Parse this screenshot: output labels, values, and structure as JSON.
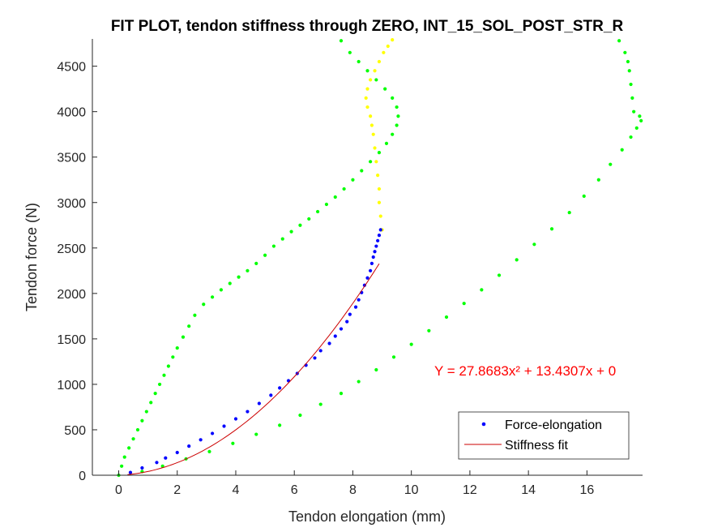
{
  "chart_data": {
    "type": "scatter",
    "title": "FIT PLOT, tendon stiffness through ZERO, INT_15_SOL_POST_STR_R",
    "xlabel": "Tendon elongation (mm)",
    "ylabel": "Tendon force (N)",
    "xlim": [
      -0.9,
      17.9
    ],
    "ylim": [
      0,
      4800
    ],
    "xticks": [
      "0",
      "2",
      "4",
      "6",
      "8",
      "10",
      "12",
      "14",
      "16"
    ],
    "yticks": [
      "0",
      "500",
      "1000",
      "1500",
      "2000",
      "2500",
      "3000",
      "3500",
      "4000",
      "4500"
    ],
    "grid": false,
    "legend": {
      "position": "bottom-right",
      "entries": [
        "Force-elongation",
        "Stiffness fit"
      ]
    },
    "annotation": {
      "text": "Y = 27.8683x² + 13.4307x + 0",
      "color": "#ff0000"
    },
    "fit": {
      "a": 27.8683,
      "b": 13.4307,
      "c": 0,
      "x_range": [
        0.3,
        8.9
      ]
    },
    "colors": {
      "force_elongation": "#0000ff",
      "fit": "#cc0000",
      "loading": "#00ff00",
      "unloading": "#00ff00",
      "plateau": "#ffff00"
    },
    "series": [
      {
        "name": "Force-elongation",
        "color": "#0000ff",
        "x": [
          0.4,
          0.8,
          1.3,
          1.6,
          2.0,
          2.4,
          2.8,
          3.2,
          3.6,
          4.0,
          4.4,
          4.8,
          5.2,
          5.5,
          5.8,
          6.1,
          6.4,
          6.7,
          6.9,
          7.2,
          7.4,
          7.6,
          7.8,
          7.9,
          8.1,
          8.2,
          8.3,
          8.4,
          8.5,
          8.6,
          8.65,
          8.7,
          8.75,
          8.8,
          8.85,
          8.9,
          8.95
        ],
        "y": [
          30,
          80,
          140,
          190,
          250,
          320,
          390,
          460,
          540,
          620,
          700,
          790,
          880,
          960,
          1040,
          1120,
          1210,
          1290,
          1370,
          1450,
          1530,
          1610,
          1690,
          1770,
          1850,
          1930,
          2010,
          2090,
          2170,
          2250,
          2330,
          2400,
          2460,
          2520,
          2580,
          2640,
          2700
        ]
      },
      {
        "color": "#00ff00",
        "x": [
          0.0,
          0.1,
          0.2,
          0.35,
          0.5,
          0.65,
          0.8,
          0.95,
          1.1,
          1.25,
          1.4,
          1.55,
          1.7,
          1.85,
          2.0,
          2.2,
          2.4,
          2.6,
          2.9,
          3.2,
          3.5,
          3.8,
          4.1,
          4.4,
          4.7,
          5.0,
          5.3,
          5.6,
          5.9,
          6.2,
          6.5,
          6.8,
          7.1,
          7.4,
          7.7,
          8.0,
          8.3,
          8.6,
          8.9,
          9.15,
          9.35,
          9.5,
          9.55,
          9.5,
          9.35,
          9.1,
          8.8,
          8.5,
          8.2,
          7.9,
          7.6
        ],
        "y": [
          0,
          100,
          200,
          300,
          400,
          500,
          600,
          700,
          800,
          900,
          1000,
          1100,
          1200,
          1300,
          1400,
          1520,
          1640,
          1760,
          1880,
          1960,
          2040,
          2110,
          2180,
          2250,
          2330,
          2420,
          2520,
          2600,
          2680,
          2750,
          2820,
          2900,
          2980,
          3060,
          3150,
          3250,
          3350,
          3450,
          3550,
          3650,
          3750,
          3850,
          3950,
          4050,
          4150,
          4250,
          4350,
          4450,
          4550,
          4650,
          4780
        ]
      },
      {
        "color": "#00ff00",
        "x": [
          0.8,
          1.5,
          2.3,
          3.1,
          3.9,
          4.7,
          5.5,
          6.2,
          6.9,
          7.6,
          8.2,
          8.8,
          9.4,
          10.0,
          10.6,
          11.2,
          11.8,
          12.4,
          13.0,
          13.6,
          14.2,
          14.8,
          15.4,
          15.9,
          16.4,
          16.8,
          17.2,
          17.5,
          17.7,
          17.85,
          17.8,
          17.6,
          17.55,
          17.5,
          17.45,
          17.4,
          17.3,
          17.1
        ],
        "y": [
          40,
          100,
          180,
          260,
          350,
          450,
          550,
          660,
          780,
          900,
          1030,
          1160,
          1300,
          1440,
          1590,
          1740,
          1890,
          2040,
          2200,
          2370,
          2540,
          2710,
          2890,
          3070,
          3250,
          3420,
          3580,
          3720,
          3820,
          3900,
          3950,
          4000,
          4150,
          4300,
          4450,
          4550,
          4650,
          4780
        ]
      },
      {
        "color": "#ffff00",
        "x": [
          9.0,
          8.95,
          8.9,
          8.9,
          8.85,
          8.8,
          8.75,
          8.7,
          8.65,
          8.6,
          8.5,
          8.45,
          8.5,
          8.6,
          8.75,
          8.9,
          9.05,
          9.2,
          9.35
        ],
        "y": [
          2700,
          2850,
          3000,
          3150,
          3300,
          3450,
          3600,
          3750,
          3850,
          3950,
          4050,
          4150,
          4250,
          4350,
          4450,
          4550,
          4650,
          4720,
          4790
        ]
      }
    ]
  }
}
